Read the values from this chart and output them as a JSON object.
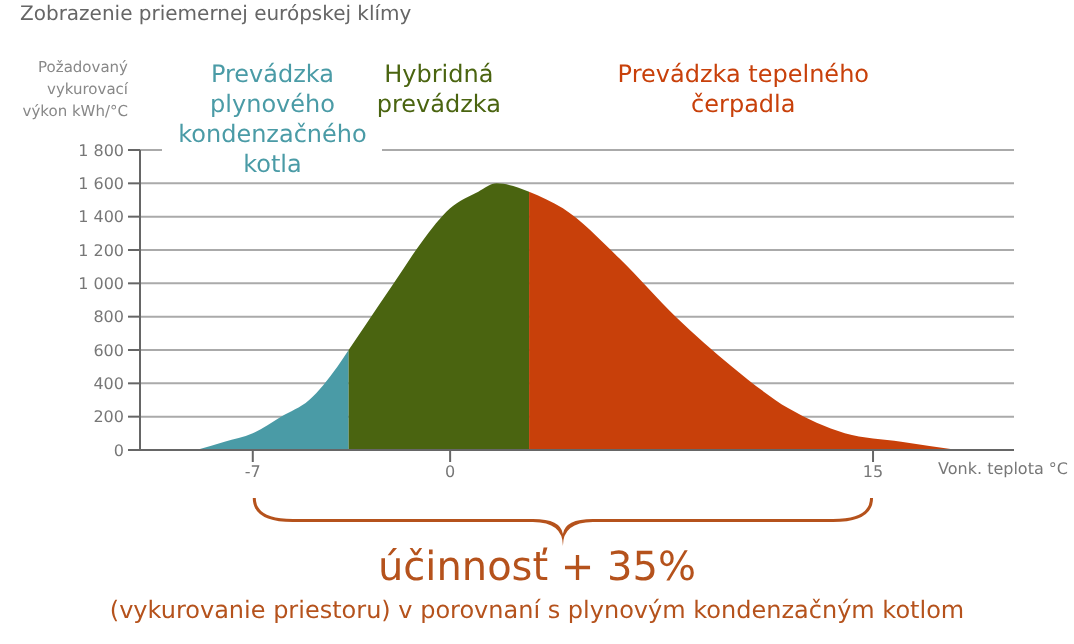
{
  "chart_data": {
    "type": "area",
    "title": "Zobrazenie priemernej európskej klímy",
    "ylabel": "Požadovaný vykurovací výkon kWh/°C",
    "xlabel": "Vonk. teplota °C",
    "series": [
      {
        "name": "Prevádzka plynového kondenzačného kotla",
        "color": "#4a9ba6",
        "x": [
          -9,
          -8,
          -7,
          -6,
          -5,
          -4,
          -3.6
        ],
        "values": [
          0,
          50,
          100,
          200,
          300,
          500,
          600
        ]
      },
      {
        "name": "Hybridná prevádzka",
        "color": "#4a6410",
        "x": [
          -3.6,
          -3,
          -2,
          -1,
          0,
          1,
          1.65,
          2.8
        ],
        "values": [
          600,
          750,
          1000,
          1250,
          1450,
          1550,
          1600,
          1550
        ]
      },
      {
        "name": "Prevádzka tepelného čerpadla",
        "color": "#c8400a",
        "x": [
          2.8,
          4,
          6,
          8,
          10,
          12,
          14,
          16,
          18
        ],
        "values": [
          1550,
          1450,
          1150,
          800,
          500,
          250,
          100,
          50,
          0
        ]
      }
    ],
    "xlim": [
      -11,
      20
    ],
    "xticks": [
      -7,
      0,
      15
    ],
    "ylim": [
      0,
      1800
    ],
    "yticks": [
      0,
      200,
      400,
      600,
      800,
      {
        "value": 1000,
        "label": "1 000"
      },
      {
        "value": 1200,
        "label": "1 200"
      },
      {
        "value": 1400,
        "label": "1 400"
      },
      {
        "value": 1600,
        "label": "1 600"
      },
      {
        "value": 1800,
        "label": "1 800"
      }
    ],
    "grid": "y",
    "annotations": [
      "účinnosť + 35%",
      "(vykurovanie priestoru) v porovnaní s plynovým kondenzačným kotlom"
    ]
  }
}
